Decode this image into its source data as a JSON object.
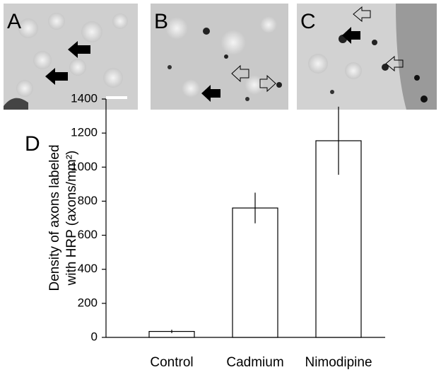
{
  "images": [
    {
      "label": "A"
    },
    {
      "label": "B"
    },
    {
      "label": "C"
    }
  ],
  "chart_data": {
    "type": "bar",
    "label": "D",
    "ylabel": [
      "Density of axons labeled",
      "with HRP (axons/mm²)"
    ],
    "categories": [
      "Control",
      "Cadmium",
      "Nimodipine"
    ],
    "values": [
      35,
      760,
      1155
    ],
    "errors": [
      10,
      90,
      200
    ],
    "color": "#ffffff",
    "edge_color": "#000000",
    "ylim": [
      0,
      1400
    ],
    "yticks": [
      0,
      200,
      400,
      600,
      800,
      1000,
      1200,
      1400
    ],
    "grid": false
  }
}
